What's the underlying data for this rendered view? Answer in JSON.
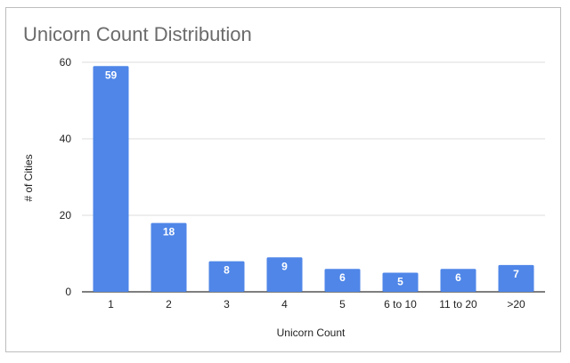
{
  "chart_data": {
    "type": "bar",
    "title": "Unicorn Count Distribution",
    "xlabel": "Unicorn Count",
    "ylabel": "# of Cities",
    "categories": [
      "1",
      "2",
      "3",
      "4",
      "5",
      "6 to 10",
      "11 to 20",
      ">20"
    ],
    "values": [
      59,
      18,
      8,
      9,
      6,
      5,
      6,
      7
    ],
    "data_labels": [
      "59",
      "18",
      "8",
      "9",
      "6",
      "5",
      "6",
      "7"
    ],
    "yticks": [
      "0",
      "20",
      "40",
      "60"
    ],
    "ylim": [
      0,
      60
    ],
    "grid": true,
    "legend": "none",
    "bar_color": "#4f86e8",
    "grid_color": "#dddddd"
  }
}
